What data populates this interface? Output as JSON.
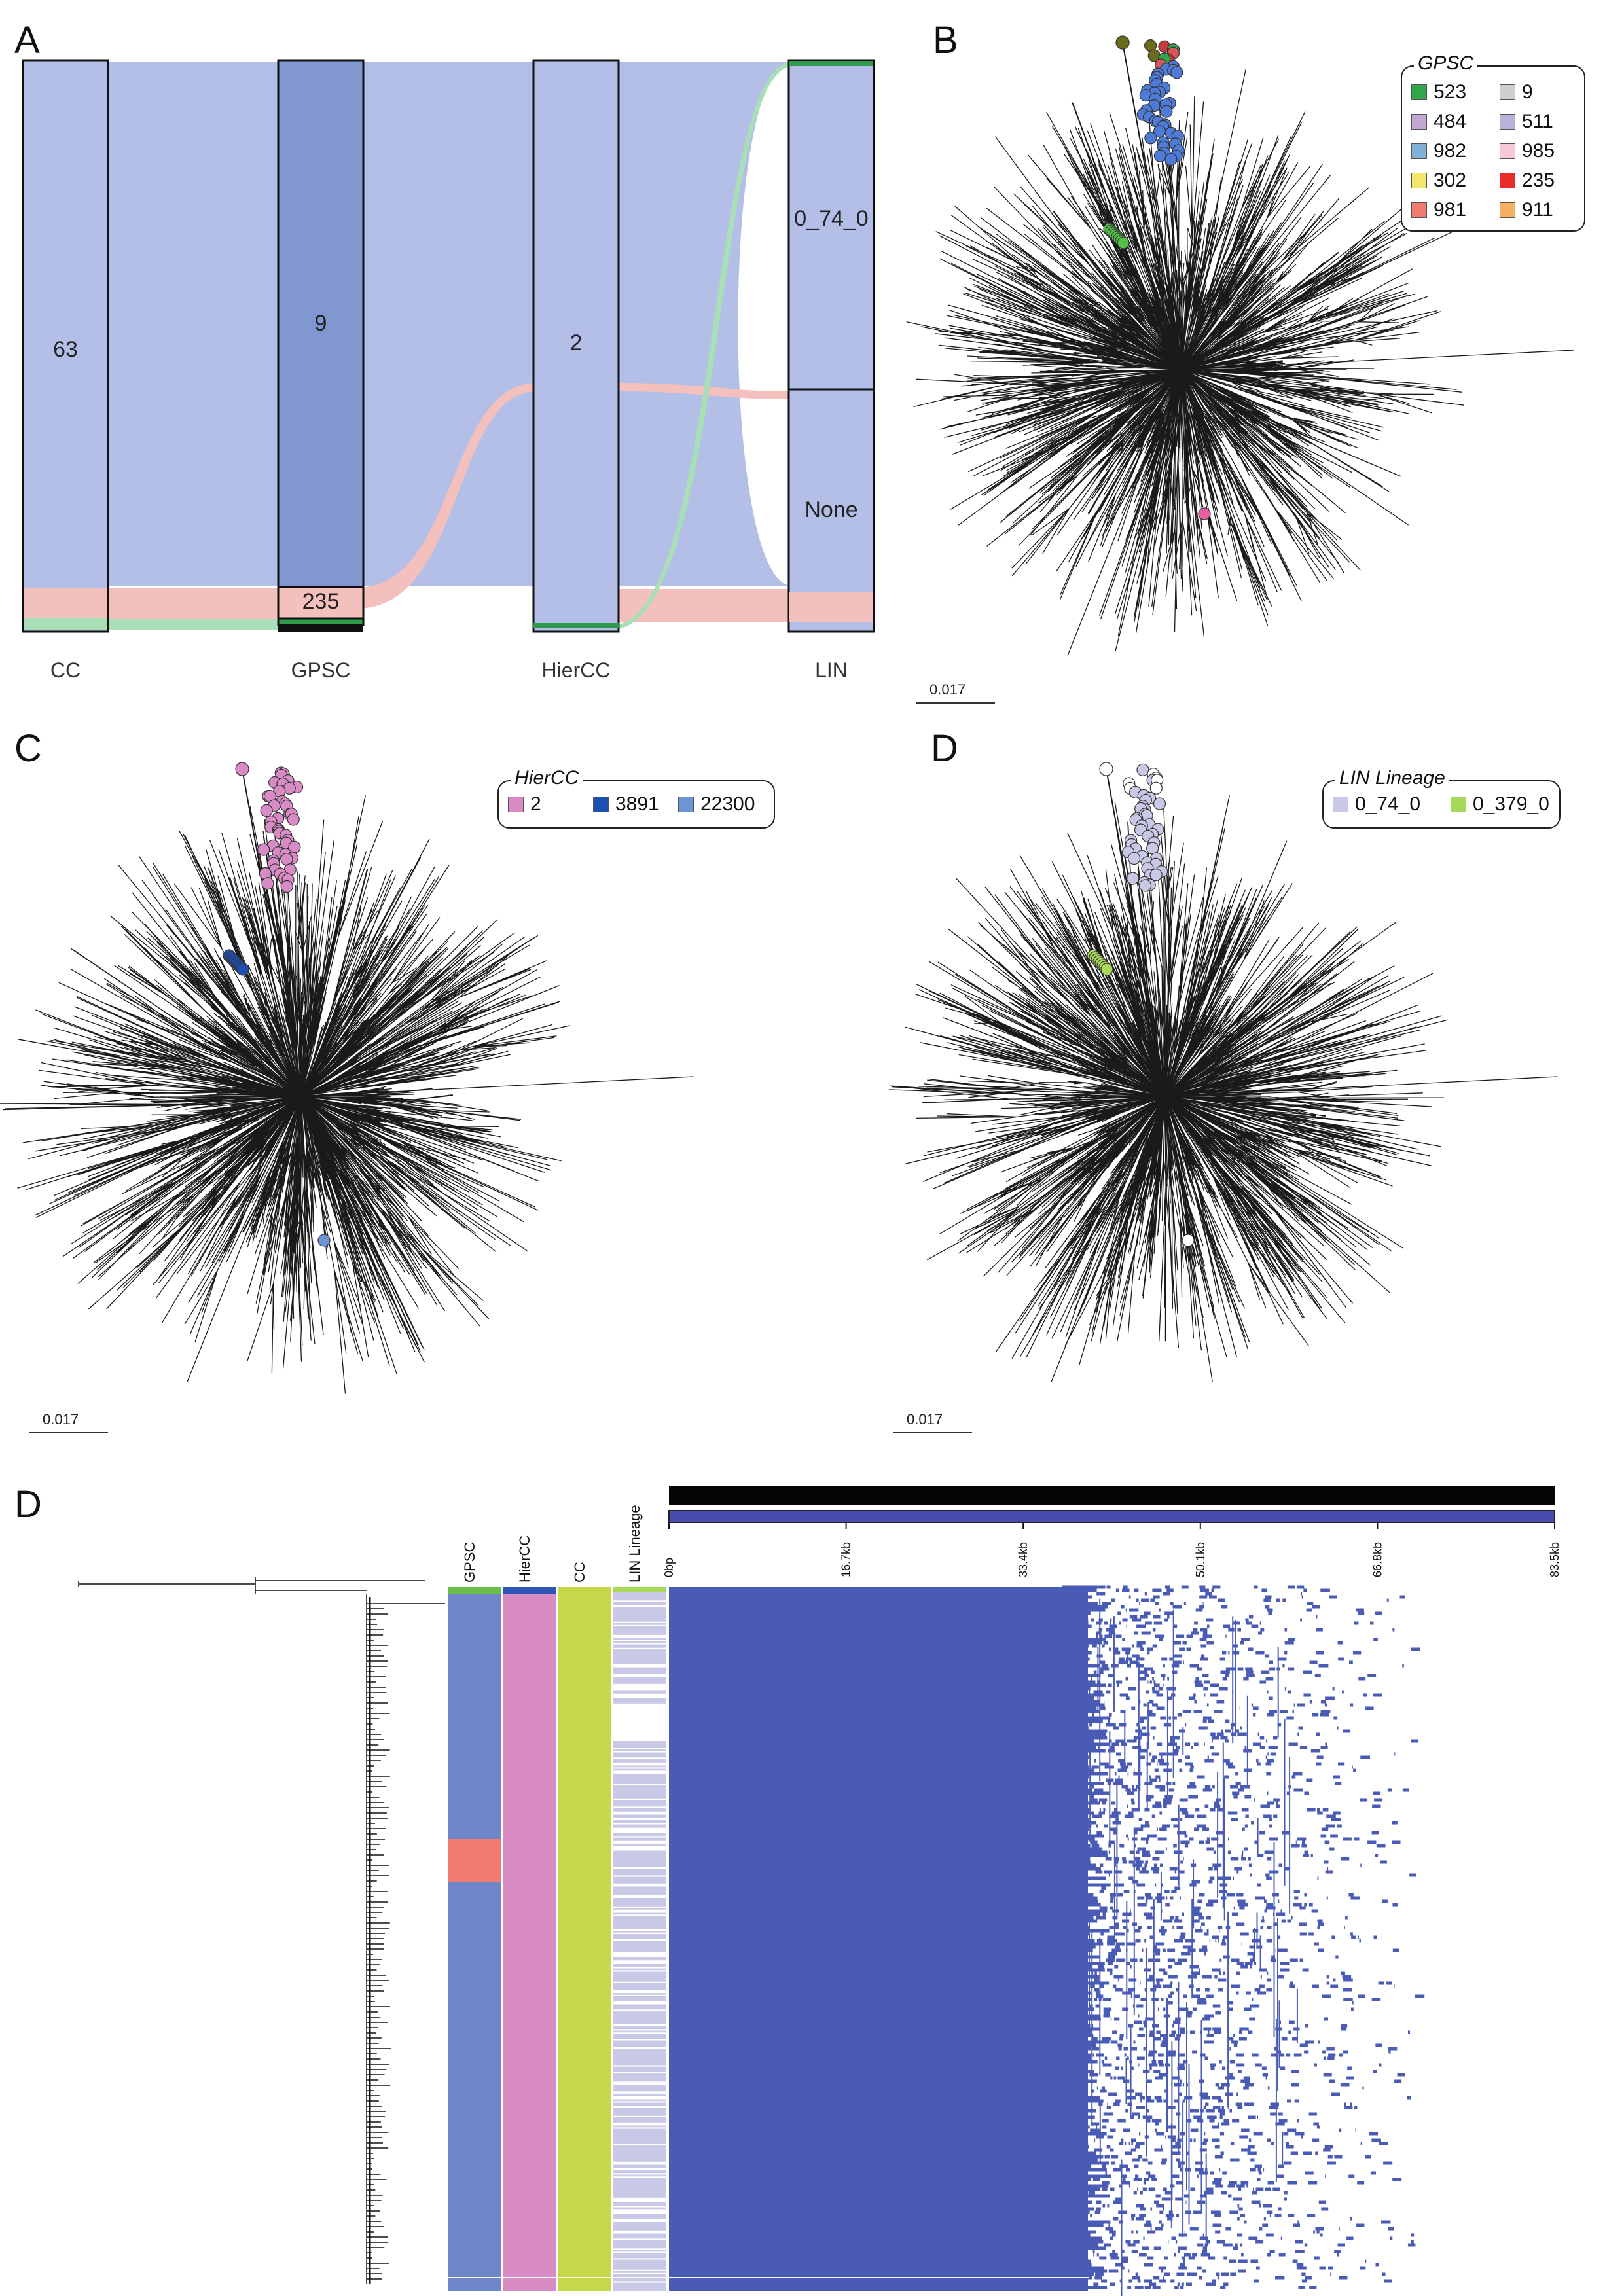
{
  "panels": {
    "a": "A",
    "b": "B",
    "c": "C",
    "d_tree": "D",
    "d_heatmap": "D"
  },
  "sankey": {
    "axis_labels": [
      "CC",
      "GPSC",
      "HierCC",
      "LIN"
    ],
    "block_labels": {
      "cc": "63",
      "gpsc_main": "9",
      "gpsc_small": "235",
      "hiercc": "2",
      "lin_top": "0_74_0",
      "lin_bottom": "None"
    },
    "colors": {
      "main": "#b3bfe6",
      "dark": "#8197d0",
      "pink": "#f4c0bd",
      "green": "#a9dfb7",
      "darkgreen": "#2f9a4b"
    }
  },
  "tree_b": {
    "legend_title": "GPSC",
    "legend_items": [
      {
        "label": "523",
        "color": "#2ea84a"
      },
      {
        "label": "9",
        "color": "#cfcfcf"
      },
      {
        "label": "484",
        "color": "#c3a6d3"
      },
      {
        "label": "511",
        "color": "#b7b2da"
      },
      {
        "label": "982",
        "color": "#7fb1d9"
      },
      {
        "label": "985",
        "color": "#f6c8d8"
      },
      {
        "label": "302",
        "color": "#f2e66b"
      },
      {
        "label": "235",
        "color": "#e82a2a"
      },
      {
        "label": "981",
        "color": "#ef7c6e"
      },
      {
        "label": "911",
        "color": "#f4b063"
      }
    ],
    "scale": "0.017"
  },
  "tree_c": {
    "legend_title": "HierCC",
    "legend_items": [
      {
        "label": "2",
        "color": "#d98bc6"
      },
      {
        "label": "3891",
        "color": "#1d4fb0"
      },
      {
        "label": "22300",
        "color": "#6d95d6"
      }
    ],
    "scale": "0.017"
  },
  "tree_d": {
    "legend_title": "LIN Lineage",
    "legend_items": [
      {
        "label": "0_74_0",
        "color": "#c9c8e6"
      },
      {
        "label": "0_379_0",
        "color": "#a8d85a"
      }
    ],
    "scale": "0.017"
  },
  "heatmap": {
    "column_labels": [
      "GPSC",
      "HierCC",
      "CC",
      "LIN Lineage"
    ],
    "axis_ticks": [
      "0bp",
      "16.7kb",
      "33.4kb",
      "50.1kb",
      "66.8kb",
      "83.5kb"
    ],
    "colors": {
      "gpsc": "#6f86c9",
      "gpsc_accent": "#ef7c6e",
      "hiercc": "#d98bc6",
      "cc": "#c6d84a",
      "lin": "#c9c8e6",
      "presence": "#4a5bb5"
    }
  }
}
